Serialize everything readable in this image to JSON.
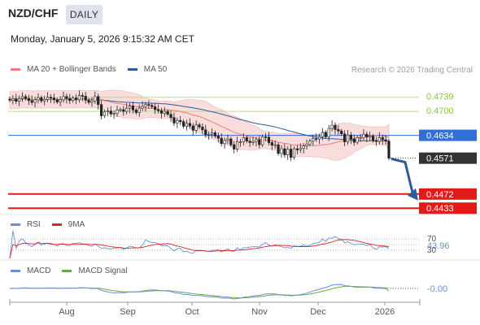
{
  "header": {
    "pair": "NZD/CHF",
    "timeframe": "DAILY",
    "datetime": "Monday, January 5, 2026 9:15:32 AM CET"
  },
  "legend": {
    "ma20_label": "MA 20 + Bollinger Bands",
    "ma50_label": "MA 50",
    "credit": "Research © 2026 Trading Central"
  },
  "rsi_legend": {
    "rsi_label": "RSI",
    "ma_label": "9MA"
  },
  "macd_legend": {
    "macd_label": "MACD",
    "signal_label": "MACD Signal"
  },
  "colors": {
    "ma20": "#f07b7b",
    "ma50": "#2d5a9e",
    "band_fill": "#f8d6d6",
    "resistance": "#b9dc8c",
    "pivot": "#2f6fd6",
    "support": "#e21a1a",
    "last": "#333333",
    "candle": "#222222",
    "rsi": "#6b8ed6",
    "rsi_ma": "#d9242a",
    "macd": "#6b8ed6",
    "macd_signal": "#6aa84f",
    "arrow": "#2d5a9e"
  },
  "chart_data": [
    {
      "type": "candlestick",
      "title": "NZD/CHF",
      "y_range": [
        0.442,
        0.479
      ],
      "x_labels": [
        "Aug",
        "Sep",
        "Oct",
        "Nov",
        "Dec",
        "2026"
      ],
      "closes": [
        0.4731,
        0.4735,
        0.4728,
        0.4736,
        0.4741,
        0.4736,
        0.473,
        0.4725,
        0.4732,
        0.4738,
        0.4729,
        0.4733,
        0.4739,
        0.4737,
        0.4732,
        0.4726,
        0.4732,
        0.4741,
        0.4736,
        0.473,
        0.4737,
        0.4732,
        0.4744,
        0.4742,
        0.4731,
        0.4725,
        0.4729,
        0.4741,
        0.4719,
        0.4688,
        0.4699,
        0.4701,
        0.4693,
        0.4695,
        0.4704,
        0.4705,
        0.47,
        0.4709,
        0.4715,
        0.4704,
        0.4697,
        0.4709,
        0.4714,
        0.4719,
        0.4717,
        0.4713,
        0.4705,
        0.4702,
        0.4695,
        0.47,
        0.4692,
        0.4683,
        0.4668,
        0.4675,
        0.4672,
        0.4659,
        0.4667,
        0.466,
        0.4648,
        0.4663,
        0.4657,
        0.4649,
        0.4636,
        0.4637,
        0.4641,
        0.4632,
        0.4626,
        0.4611,
        0.462,
        0.4624,
        0.4608,
        0.4596,
        0.4616,
        0.4616,
        0.4628,
        0.4618,
        0.4614,
        0.4617,
        0.4622,
        0.4608,
        0.463,
        0.4629,
        0.4614,
        0.4607,
        0.4608,
        0.4584,
        0.4597,
        0.458,
        0.4596,
        0.4573,
        0.4597,
        0.4594,
        0.4598,
        0.4605,
        0.461,
        0.4618,
        0.4625,
        0.4624,
        0.463,
        0.4642,
        0.463,
        0.4653,
        0.4662,
        0.465,
        0.4646,
        0.4638,
        0.4616,
        0.4635,
        0.4624,
        0.4615,
        0.4628,
        0.4628,
        0.4637,
        0.4629,
        0.4632,
        0.462,
        0.4617,
        0.4628,
        0.4622,
        0.4618,
        0.4571
      ],
      "levels": [
        {
          "label": "0.4739",
          "value": 0.4739,
          "kind": "resistance"
        },
        {
          "label": "0.4700",
          "value": 0.47,
          "kind": "resistance"
        },
        {
          "label": "0.4634",
          "value": 0.4634,
          "kind": "pivot"
        },
        {
          "label": "0.4571",
          "value": 0.4571,
          "kind": "last"
        },
        {
          "label": "0.4472",
          "value": 0.4472,
          "kind": "support"
        },
        {
          "label": "0.4433",
          "value": 0.4433,
          "kind": "support"
        }
      ]
    },
    {
      "type": "line",
      "title": "RSI",
      "ticks": [
        "70",
        "43.96",
        "30"
      ],
      "last_value": 43.96,
      "series": [
        {
          "name": "RSI"
        },
        {
          "name": "9MA"
        }
      ]
    },
    {
      "type": "line",
      "title": "MACD",
      "last_value_label": "-0.00",
      "series": [
        {
          "name": "MACD"
        },
        {
          "name": "MACD Signal"
        }
      ]
    }
  ]
}
